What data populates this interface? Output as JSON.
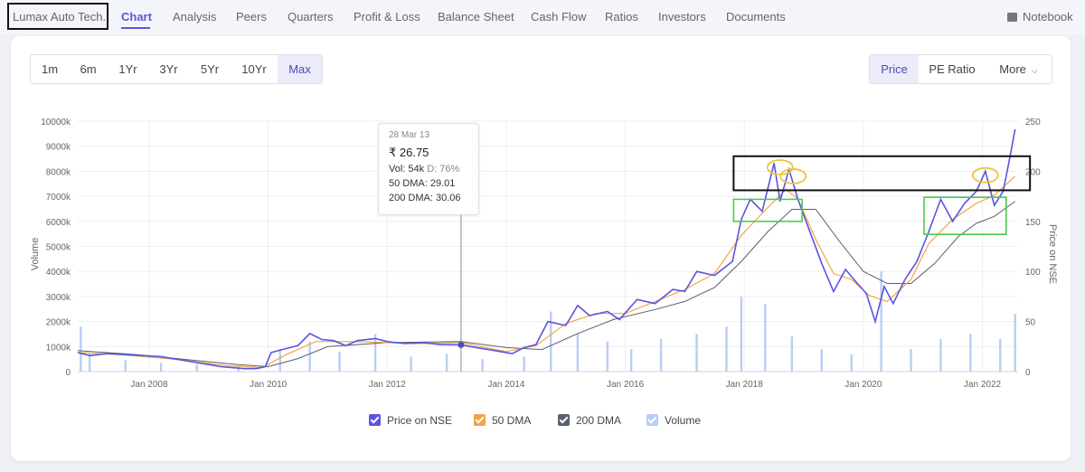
{
  "nav": {
    "company": "Lumax Auto Tech.",
    "tabs": [
      "Chart",
      "Analysis",
      "Peers",
      "Quarters",
      "Profit & Loss",
      "Balance Sheet",
      "Cash Flow",
      "Ratios",
      "Investors",
      "Documents"
    ],
    "active_tab": "Chart",
    "notebook": "Notebook"
  },
  "controls": {
    "periods": [
      "1m",
      "6m",
      "1Yr",
      "3Yr",
      "5Yr",
      "10Yr",
      "Max"
    ],
    "active_period": "Max",
    "views": [
      "Price",
      "PE Ratio",
      "More"
    ],
    "active_view": "Price"
  },
  "tooltip": {
    "date": "28 Mar 13",
    "price": "₹ 26.75",
    "vol_label": "Vol: 54k",
    "delivery": "D: 76%",
    "dma50": "50 DMA: 29.01",
    "dma200": "200 DMA: 30.06"
  },
  "legend": {
    "price": "Price on NSE",
    "dma50": "50 DMA",
    "dma200": "200 DMA",
    "volume": "Volume"
  },
  "colors": {
    "accent": "#5c57d6",
    "price": "#5b54e0",
    "dma50": "#f0a646",
    "dma200": "#5a5f6e",
    "volume": "#b9cdf5",
    "annotation_black": "#111111",
    "annotation_green": "#4cc94c",
    "annotation_yellow": "#ecc53a"
  },
  "chart_data": {
    "type": "line",
    "title": "",
    "xlabel": "",
    "ylabel_left": "Volume",
    "ylabel_right": "Price on NSE",
    "x_ticks": [
      "Jan 2008",
      "Jan 2010",
      "Jan 2012",
      "Jan 2014",
      "Jan 2016",
      "Jan 2018",
      "Jan 2020",
      "Jan 2022"
    ],
    "y_left_ticks": [
      "0",
      "1000k",
      "2000k",
      "3000k",
      "4000k",
      "5000k",
      "6000k",
      "7000k",
      "8000k",
      "9000k",
      "10000k"
    ],
    "y_right_ticks": [
      "0",
      "50",
      "100",
      "150",
      "200",
      "250"
    ],
    "xlim": [
      2006.8,
      2022.6
    ],
    "ylim_price": [
      0,
      250
    ],
    "ylim_volume": [
      0,
      10000
    ],
    "grid": true,
    "legend_position": "bottom",
    "price_series": {
      "name": "Price on NSE",
      "points": [
        [
          2006.8,
          19
        ],
        [
          2007.0,
          16
        ],
        [
          2007.3,
          18
        ],
        [
          2007.6,
          17
        ],
        [
          2007.9,
          16
        ],
        [
          2008.2,
          15
        ],
        [
          2008.5,
          12
        ],
        [
          2008.8,
          9
        ],
        [
          2009.0,
          7
        ],
        [
          2009.2,
          5
        ],
        [
          2009.4,
          4
        ],
        [
          2009.6,
          3
        ],
        [
          2009.8,
          3
        ],
        [
          2009.95,
          5
        ],
        [
          2010.05,
          19
        ],
        [
          2010.3,
          23
        ],
        [
          2010.5,
          26
        ],
        [
          2010.7,
          38
        ],
        [
          2010.9,
          32
        ],
        [
          2011.1,
          31
        ],
        [
          2011.3,
          26
        ],
        [
          2011.5,
          31
        ],
        [
          2011.8,
          33
        ],
        [
          2012.0,
          30
        ],
        [
          2012.3,
          28
        ],
        [
          2012.6,
          29
        ],
        [
          2012.9,
          27
        ],
        [
          2013.24,
          26.75
        ],
        [
          2013.5,
          24
        ],
        [
          2013.8,
          21
        ],
        [
          2014.1,
          18
        ],
        [
          2014.3,
          24
        ],
        [
          2014.5,
          27
        ],
        [
          2014.7,
          50
        ],
        [
          2015.0,
          46
        ],
        [
          2015.2,
          66
        ],
        [
          2015.4,
          56
        ],
        [
          2015.7,
          60
        ],
        [
          2015.9,
          52
        ],
        [
          2016.2,
          72
        ],
        [
          2016.5,
          68
        ],
        [
          2016.8,
          82
        ],
        [
          2017.0,
          80
        ],
        [
          2017.2,
          100
        ],
        [
          2017.5,
          96
        ],
        [
          2017.8,
          110
        ],
        [
          2017.95,
          152
        ],
        [
          2018.1,
          172
        ],
        [
          2018.3,
          160
        ],
        [
          2018.5,
          208
        ],
        [
          2018.6,
          170
        ],
        [
          2018.75,
          202
        ],
        [
          2018.9,
          172
        ],
        [
          2019.1,
          140
        ],
        [
          2019.3,
          108
        ],
        [
          2019.5,
          80
        ],
        [
          2019.7,
          102
        ],
        [
          2019.9,
          88
        ],
        [
          2020.05,
          78
        ],
        [
          2020.2,
          50
        ],
        [
          2020.35,
          85
        ],
        [
          2020.5,
          68
        ],
        [
          2020.7,
          92
        ],
        [
          2020.9,
          110
        ],
        [
          2021.1,
          140
        ],
        [
          2021.3,
          172
        ],
        [
          2021.5,
          150
        ],
        [
          2021.7,
          168
        ],
        [
          2021.9,
          180
        ],
        [
          2022.05,
          200
        ],
        [
          2022.2,
          166
        ],
        [
          2022.35,
          180
        ],
        [
          2022.45,
          210
        ],
        [
          2022.55,
          242
        ]
      ]
    },
    "dma50_series": {
      "name": "50 DMA",
      "points": [
        [
          2006.8,
          19
        ],
        [
          2007.5,
          17
        ],
        [
          2008.5,
          12
        ],
        [
          2009.3,
          6
        ],
        [
          2009.9,
          4
        ],
        [
          2010.3,
          17
        ],
        [
          2010.8,
          30
        ],
        [
          2011.5,
          30
        ],
        [
          2012.5,
          28
        ],
        [
          2013.24,
          29.01
        ],
        [
          2014.0,
          20
        ],
        [
          2014.5,
          26
        ],
        [
          2015.0,
          48
        ],
        [
          2015.5,
          58
        ],
        [
          2016.0,
          58
        ],
        [
          2016.5,
          70
        ],
        [
          2017.0,
          82
        ],
        [
          2017.5,
          98
        ],
        [
          2017.95,
          136
        ],
        [
          2018.3,
          158
        ],
        [
          2018.7,
          182
        ],
        [
          2018.9,
          172
        ],
        [
          2019.2,
          132
        ],
        [
          2019.5,
          98
        ],
        [
          2019.8,
          92
        ],
        [
          2020.1,
          76
        ],
        [
          2020.4,
          70
        ],
        [
          2020.8,
          92
        ],
        [
          2021.1,
          128
        ],
        [
          2021.5,
          152
        ],
        [
          2021.9,
          168
        ],
        [
          2022.2,
          176
        ],
        [
          2022.55,
          195
        ]
      ]
    },
    "dma200_series": {
      "name": "200 DMA",
      "points": [
        [
          2006.8,
          21
        ],
        [
          2007.8,
          17
        ],
        [
          2008.8,
          11
        ],
        [
          2009.5,
          7
        ],
        [
          2010.0,
          5
        ],
        [
          2010.5,
          13
        ],
        [
          2011.0,
          25
        ],
        [
          2012.0,
          29
        ],
        [
          2013.24,
          30.06
        ],
        [
          2014.0,
          24
        ],
        [
          2014.6,
          22
        ],
        [
          2015.2,
          38
        ],
        [
          2015.8,
          52
        ],
        [
          2016.5,
          62
        ],
        [
          2017.0,
          70
        ],
        [
          2017.5,
          84
        ],
        [
          2017.95,
          110
        ],
        [
          2018.4,
          140
        ],
        [
          2018.8,
          162
        ],
        [
          2019.2,
          162
        ],
        [
          2019.6,
          130
        ],
        [
          2020.0,
          100
        ],
        [
          2020.4,
          88
        ],
        [
          2020.8,
          88
        ],
        [
          2021.2,
          108
        ],
        [
          2021.6,
          135
        ],
        [
          2021.9,
          148
        ],
        [
          2022.2,
          155
        ],
        [
          2022.55,
          170
        ]
      ]
    },
    "volume_series": {
      "name": "Volume",
      "unit": "k",
      "points": [
        [
          2006.85,
          1800
        ],
        [
          2007.0,
          700
        ],
        [
          2007.6,
          450
        ],
        [
          2008.2,
          350
        ],
        [
          2008.8,
          300
        ],
        [
          2009.5,
          250
        ],
        [
          2010.2,
          900
        ],
        [
          2010.7,
          1200
        ],
        [
          2011.2,
          800
        ],
        [
          2011.8,
          1500
        ],
        [
          2012.4,
          600
        ],
        [
          2013.0,
          700
        ],
        [
          2013.6,
          500
        ],
        [
          2014.3,
          600
        ],
        [
          2014.75,
          2400
        ],
        [
          2015.2,
          1500
        ],
        [
          2015.7,
          1200
        ],
        [
          2016.1,
          900
        ],
        [
          2016.6,
          1300
        ],
        [
          2017.2,
          1500
        ],
        [
          2017.7,
          1800
        ],
        [
          2017.95,
          3000
        ],
        [
          2018.35,
          2700
        ],
        [
          2018.8,
          1400
        ],
        [
          2019.3,
          900
        ],
        [
          2019.8,
          700
        ],
        [
          2020.3,
          4000
        ],
        [
          2020.8,
          900
        ],
        [
          2021.3,
          1300
        ],
        [
          2021.8,
          1500
        ],
        [
          2022.3,
          1300
        ],
        [
          2022.55,
          2300
        ]
      ]
    },
    "highlights": {
      "black_band": {
        "x": [
          2017.82,
          2022.8
        ],
        "price": [
          181,
          215
        ]
      },
      "green_boxes": [
        {
          "x": [
            2017.82,
            2018.97
          ],
          "price": [
            150,
            172
          ]
        },
        {
          "x": [
            2021.02,
            2022.4
          ],
          "price": [
            137,
            174
          ]
        }
      ],
      "yellow_ellipses": [
        {
          "x": 2018.6,
          "price": 204
        },
        {
          "x": 2018.82,
          "price": 195
        },
        {
          "x": 2022.05,
          "price": 196
        }
      ]
    }
  }
}
